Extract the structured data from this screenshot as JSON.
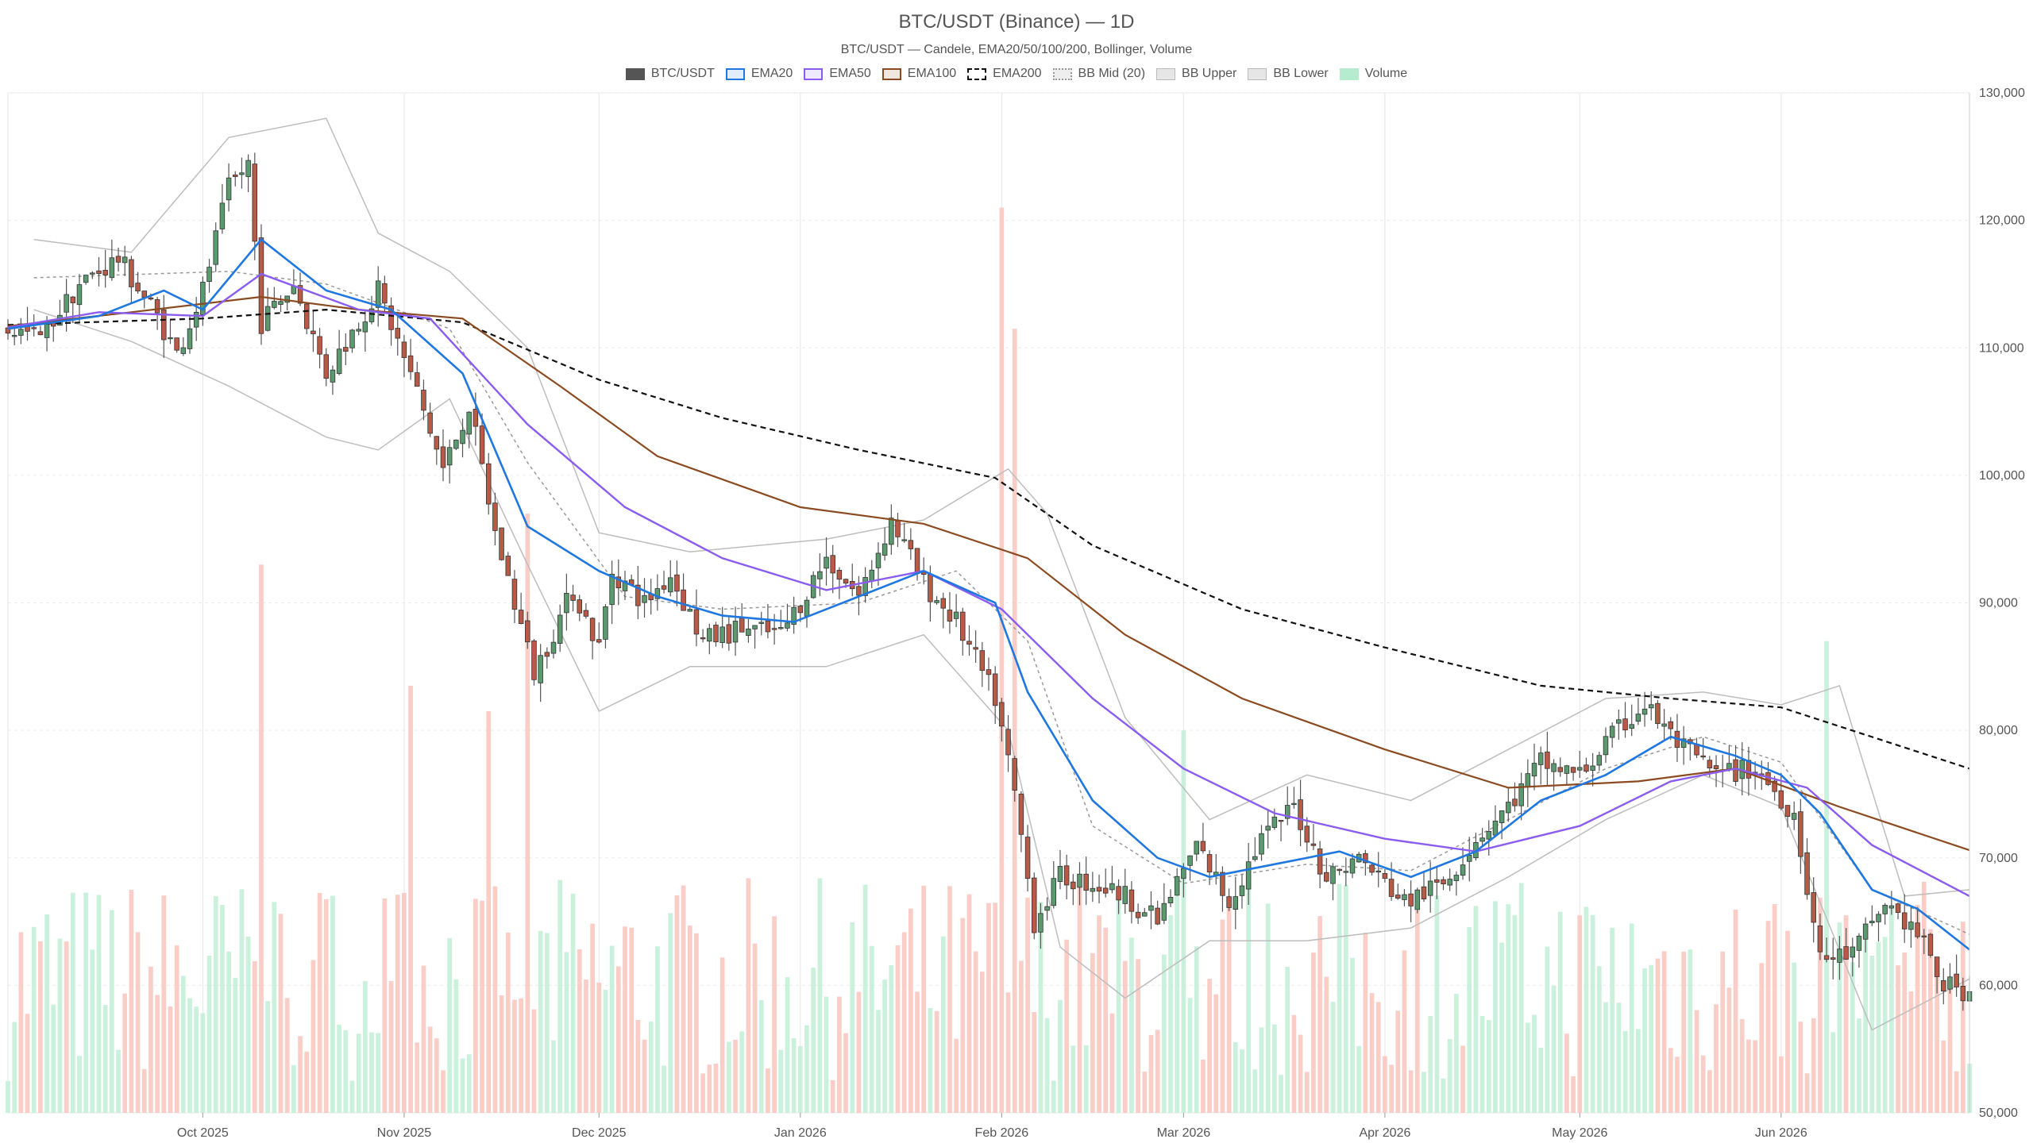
{
  "chart_data": {
    "type": "candlestick",
    "title": "BTC/USDT (Binance) — 1D",
    "subtitle": "BTC/USDT — Candele, EMA20/50/100/200, Bollinger, Volume",
    "legend": [
      {
        "label": "BTC/USDT",
        "color": "#555555",
        "style": "solid"
      },
      {
        "label": "EMA20",
        "color": "#1f77e0",
        "style": "line"
      },
      {
        "label": "EMA50",
        "color": "#8a5cf0",
        "style": "line"
      },
      {
        "label": "EMA100",
        "color": "#8b4a1f",
        "style": "line"
      },
      {
        "label": "EMA200",
        "color": "#111111",
        "style": "dashed"
      },
      {
        "label": "BB Mid (20)",
        "color": "#999999",
        "style": "dotted"
      },
      {
        "label": "BB Upper",
        "color": "#bbbbbb",
        "style": "box"
      },
      {
        "label": "BB Lower",
        "color": "#bbbbbb",
        "style": "box"
      },
      {
        "label": "Volume",
        "color": "#b5ecd0",
        "style": "fill"
      }
    ],
    "x_range": [
      "2025-09-01",
      "2026-06-30"
    ],
    "x_ticks": [
      {
        "date": "2025-10-01",
        "label": "Oct 2025"
      },
      {
        "date": "2025-11-01",
        "label": "Nov 2025"
      },
      {
        "date": "2025-12-01",
        "label": "Dec 2025"
      },
      {
        "date": "2026-01-01",
        "label": "Jan 2026"
      },
      {
        "date": "2026-02-01",
        "label": "Feb 2026"
      },
      {
        "date": "2026-03-01",
        "label": "Mar 2026"
      },
      {
        "date": "2026-04-01",
        "label": "Apr 2026"
      },
      {
        "date": "2026-05-01",
        "label": "May 2026"
      },
      {
        "date": "2026-06-01",
        "label": "Jun 2026"
      }
    ],
    "y_range": [
      50000,
      130000
    ],
    "y_axis_position": "right",
    "y_ticks": [
      {
        "value": 50000,
        "label": "50,000"
      },
      {
        "value": 60000,
        "label": "60,000"
      },
      {
        "value": 70000,
        "label": "70,000"
      },
      {
        "value": 80000,
        "label": "80,000"
      },
      {
        "value": 90000,
        "label": "90,000"
      },
      {
        "value": 100000,
        "label": "100,000"
      },
      {
        "value": 110000,
        "label": "110,000"
      },
      {
        "value": 120000,
        "label": "120,000"
      },
      {
        "value": 130000,
        "label": "130,000"
      }
    ],
    "grid": true,
    "close_path": [
      [
        "2025-09-01",
        111500
      ],
      [
        "2025-09-06",
        110800
      ],
      [
        "2025-09-12",
        115000
      ],
      [
        "2025-09-18",
        117000
      ],
      [
        "2025-09-24",
        112500
      ],
      [
        "2025-09-27",
        109500
      ],
      [
        "2025-10-01",
        114500
      ],
      [
        "2025-10-05",
        122500
      ],
      [
        "2025-10-08",
        124500
      ],
      [
        "2025-10-10",
        112000
      ],
      [
        "2025-10-15",
        115000
      ],
      [
        "2025-10-20",
        108000
      ],
      [
        "2025-10-28",
        114500
      ],
      [
        "2025-11-03",
        106500
      ],
      [
        "2025-11-07",
        100500
      ],
      [
        "2025-11-11",
        105500
      ],
      [
        "2025-11-15",
        95500
      ],
      [
        "2025-11-21",
        84500
      ],
      [
        "2025-11-27",
        91000
      ],
      [
        "2025-12-01",
        86500
      ],
      [
        "2025-12-03",
        92500
      ],
      [
        "2025-12-08",
        90000
      ],
      [
        "2025-12-12",
        92200
      ],
      [
        "2025-12-17",
        87000
      ],
      [
        "2025-12-23",
        88000
      ],
      [
        "2025-12-29",
        87500
      ],
      [
        "2026-01-05",
        93500
      ],
      [
        "2026-01-10",
        90500
      ],
      [
        "2026-01-15",
        96500
      ],
      [
        "2026-01-20",
        91500
      ],
      [
        "2026-01-25",
        88500
      ],
      [
        "2026-01-31",
        82500
      ],
      [
        "2026-02-03",
        75000
      ],
      [
        "2026-02-06",
        65000
      ],
      [
        "2026-02-10",
        68500
      ],
      [
        "2026-02-15",
        68000
      ],
      [
        "2026-02-20",
        67000
      ],
      [
        "2026-02-25",
        65000
      ],
      [
        "2026-03-03",
        71000
      ],
      [
        "2026-03-08",
        66500
      ],
      [
        "2026-03-13",
        71500
      ],
      [
        "2026-03-18",
        74000
      ],
      [
        "2026-03-23",
        68500
      ],
      [
        "2026-03-28",
        70000
      ],
      [
        "2026-04-04",
        66500
      ],
      [
        "2026-04-10",
        68000
      ],
      [
        "2026-04-15",
        71500
      ],
      [
        "2026-04-20",
        74000
      ],
      [
        "2026-04-25",
        77500
      ],
      [
        "2026-05-01",
        76500
      ],
      [
        "2026-05-06",
        79500
      ],
      [
        "2026-05-11",
        82000
      ],
      [
        "2026-05-16",
        79000
      ],
      [
        "2026-05-22",
        76500
      ],
      [
        "2026-05-28",
        77000
      ],
      [
        "2026-06-03",
        73500
      ],
      [
        "2026-06-07",
        62000
      ],
      [
        "2026-06-12",
        62500
      ],
      [
        "2026-06-17",
        66500
      ],
      [
        "2026-06-22",
        64000
      ],
      [
        "2026-06-26",
        60000
      ],
      [
        "2026-06-30",
        59500
      ]
    ],
    "ema20": [
      [
        "2025-09-01",
        111500
      ],
      [
        "2025-09-15",
        112500
      ],
      [
        "2025-09-25",
        114500
      ],
      [
        "2025-10-01",
        113000
      ],
      [
        "2025-10-10",
        118500
      ],
      [
        "2025-10-20",
        114500
      ],
      [
        "2025-10-30",
        113000
      ],
      [
        "2025-11-10",
        108000
      ],
      [
        "2025-11-20",
        96000
      ],
      [
        "2025-12-01",
        92500
      ],
      [
        "2025-12-10",
        90500
      ],
      [
        "2025-12-20",
        89000
      ],
      [
        "2025-12-31",
        88500
      ],
      [
        "2026-01-10",
        90500
      ],
      [
        "2026-01-20",
        92500
      ],
      [
        "2026-01-31",
        90000
      ],
      [
        "2026-02-05",
        83000
      ],
      [
        "2026-02-15",
        74500
      ],
      [
        "2026-02-25",
        70000
      ],
      [
        "2026-03-05",
        68500
      ],
      [
        "2026-03-15",
        69500
      ],
      [
        "2026-03-25",
        70500
      ],
      [
        "2026-04-05",
        68500
      ],
      [
        "2026-04-15",
        70500
      ],
      [
        "2026-04-25",
        74500
      ],
      [
        "2026-05-05",
        76500
      ],
      [
        "2026-05-15",
        79500
      ],
      [
        "2026-05-25",
        78000
      ],
      [
        "2026-06-01",
        76500
      ],
      [
        "2026-06-07",
        73500
      ],
      [
        "2026-06-15",
        67500
      ],
      [
        "2026-06-22",
        66000
      ],
      [
        "2026-06-30",
        62800
      ]
    ],
    "ema50": [
      [
        "2025-09-01",
        111600
      ],
      [
        "2025-09-15",
        112800
      ],
      [
        "2025-10-01",
        112500
      ],
      [
        "2025-10-10",
        115800
      ],
      [
        "2025-10-25",
        113000
      ],
      [
        "2025-11-05",
        112300
      ],
      [
        "2025-11-20",
        104000
      ],
      [
        "2025-12-05",
        97500
      ],
      [
        "2025-12-20",
        93500
      ],
      [
        "2026-01-05",
        91000
      ],
      [
        "2026-01-20",
        92500
      ],
      [
        "2026-02-01",
        89500
      ],
      [
        "2026-02-15",
        82500
      ],
      [
        "2026-03-01",
        77000
      ],
      [
        "2026-03-15",
        73500
      ],
      [
        "2026-04-01",
        71500
      ],
      [
        "2026-04-15",
        70500
      ],
      [
        "2026-05-01",
        72500
      ],
      [
        "2026-05-15",
        76000
      ],
      [
        "2026-05-25",
        77000
      ],
      [
        "2026-06-05",
        75500
      ],
      [
        "2026-06-15",
        71000
      ],
      [
        "2026-06-30",
        67000
      ]
    ],
    "ema100": [
      [
        "2025-09-01",
        111700
      ],
      [
        "2025-09-20",
        112800
      ],
      [
        "2025-10-10",
        114000
      ],
      [
        "2025-10-25",
        113000
      ],
      [
        "2025-11-10",
        112300
      ],
      [
        "2025-11-25",
        107000
      ],
      [
        "2025-12-10",
        101500
      ],
      [
        "2026-01-01",
        97500
      ],
      [
        "2026-01-20",
        96200
      ],
      [
        "2026-02-05",
        93500
      ],
      [
        "2026-02-20",
        87500
      ],
      [
        "2026-03-10",
        82500
      ],
      [
        "2026-04-01",
        78500
      ],
      [
        "2026-04-20",
        75500
      ],
      [
        "2026-05-10",
        76000
      ],
      [
        "2026-05-25",
        77000
      ],
      [
        "2026-06-10",
        74000
      ],
      [
        "2026-06-30",
        70600
      ]
    ],
    "ema200": [
      [
        "2025-09-01",
        111800
      ],
      [
        "2025-10-01",
        112300
      ],
      [
        "2025-10-20",
        113000
      ],
      [
        "2025-11-10",
        112000
      ],
      [
        "2025-12-01",
        107500
      ],
      [
        "2025-12-20",
        104500
      ],
      [
        "2026-01-10",
        102000
      ],
      [
        "2026-01-31",
        99800
      ],
      [
        "2026-02-15",
        94500
      ],
      [
        "2026-03-10",
        89500
      ],
      [
        "2026-04-01",
        86500
      ],
      [
        "2026-04-25",
        83500
      ],
      [
        "2026-05-15",
        82500
      ],
      [
        "2026-06-01",
        81800
      ],
      [
        "2026-06-30",
        77000
      ]
    ],
    "bb_upper": [
      [
        "2025-09-05",
        118500
      ],
      [
        "2025-09-20",
        117500
      ],
      [
        "2025-10-05",
        126500
      ],
      [
        "2025-10-20",
        128000
      ],
      [
        "2025-10-28",
        119000
      ],
      [
        "2025-11-08",
        116000
      ],
      [
        "2025-11-20",
        110000
      ],
      [
        "2025-12-01",
        95500
      ],
      [
        "2025-12-15",
        94000
      ],
      [
        "2026-01-05",
        95000
      ],
      [
        "2026-01-20",
        96500
      ],
      [
        "2026-02-02",
        100500
      ],
      [
        "2026-02-08",
        97000
      ],
      [
        "2026-02-20",
        81000
      ],
      [
        "2026-03-05",
        73000
      ],
      [
        "2026-03-20",
        76500
      ],
      [
        "2026-04-05",
        74500
      ],
      [
        "2026-04-20",
        78500
      ],
      [
        "2026-05-05",
        82500
      ],
      [
        "2026-05-20",
        83000
      ],
      [
        "2026-06-01",
        82000
      ],
      [
        "2026-06-10",
        83500
      ],
      [
        "2026-06-20",
        67000
      ],
      [
        "2026-06-30",
        67500
      ]
    ],
    "bb_lower": [
      [
        "2025-09-05",
        113000
      ],
      [
        "2025-09-20",
        110500
      ],
      [
        "2025-10-05",
        107000
      ],
      [
        "2025-10-20",
        103000
      ],
      [
        "2025-10-28",
        102000
      ],
      [
        "2025-11-08",
        106000
      ],
      [
        "2025-11-20",
        93000
      ],
      [
        "2025-12-01",
        81500
      ],
      [
        "2025-12-15",
        85000
      ],
      [
        "2026-01-05",
        85000
      ],
      [
        "2026-01-20",
        87500
      ],
      [
        "2026-02-02",
        80000
      ],
      [
        "2026-02-10",
        63000
      ],
      [
        "2026-02-20",
        59000
      ],
      [
        "2026-03-05",
        63500
      ],
      [
        "2026-03-20",
        63500
      ],
      [
        "2026-04-05",
        64500
      ],
      [
        "2026-04-20",
        68500
      ],
      [
        "2026-05-05",
        73000
      ],
      [
        "2026-05-20",
        76500
      ],
      [
        "2026-06-01",
        74000
      ],
      [
        "2026-06-15",
        56500
      ],
      [
        "2026-06-30",
        60500
      ]
    ],
    "bb_mid": [
      [
        "2025-09-05",
        115500
      ],
      [
        "2025-10-05",
        116000
      ],
      [
        "2025-10-20",
        115000
      ],
      [
        "2025-11-08",
        111500
      ],
      [
        "2025-11-20",
        101000
      ],
      [
        "2025-12-05",
        90500
      ],
      [
        "2025-12-20",
        89500
      ],
      [
        "2026-01-10",
        90000
      ],
      [
        "2026-01-25",
        92500
      ],
      [
        "2026-02-05",
        87000
      ],
      [
        "2026-02-15",
        72500
      ],
      [
        "2026-03-01",
        68000
      ],
      [
        "2026-03-20",
        69500
      ],
      [
        "2026-04-05",
        69000
      ],
      [
        "2026-04-20",
        73000
      ],
      [
        "2026-05-05",
        77000
      ],
      [
        "2026-05-20",
        79500
      ],
      [
        "2026-06-01",
        77500
      ],
      [
        "2026-06-15",
        67500
      ],
      [
        "2026-06-30",
        64000
      ]
    ],
    "volume_spikes": [
      [
        "2025-10-10",
        93000
      ],
      [
        "2025-11-20",
        97000
      ],
      [
        "2025-11-14",
        81500
      ],
      [
        "2025-11-02",
        83500
      ],
      [
        "2026-02-01",
        121000
      ],
      [
        "2026-02-03",
        111500
      ],
      [
        "2026-03-01",
        80000
      ],
      [
        "2026-06-08",
        87000
      ]
    ],
    "volume_base": 50000,
    "volume_typical_top": 62000
  }
}
